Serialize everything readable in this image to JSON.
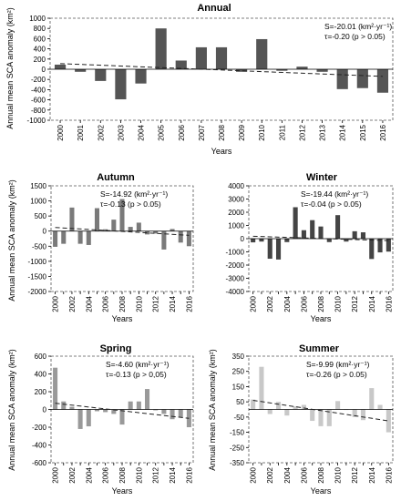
{
  "panels": [
    {
      "title": "Annual",
      "ylabel": "Annual mean SCA anomaly (km²)",
      "xlabel": "Years",
      "annotation_slope": "S=-20.01 (km²·yr⁻¹)",
      "annotation_tau": "τ=-0.20 (p > 0.05)"
    },
    {
      "title": "Autumn",
      "ylabel": "Annual mean SCA anomaly (km²)",
      "xlabel": "Years",
      "annotation_slope": "S=-14.92 (km²·yr⁻¹)",
      "annotation_tau": "τ=-0.13 (p > 0.05)"
    },
    {
      "title": "Winter",
      "ylabel": "",
      "xlabel": "Years",
      "annotation_slope": "S=-19.44 (km²·yr⁻¹)",
      "annotation_tau": "τ=-0.04 (p > 0.05)"
    },
    {
      "title": "Spring",
      "ylabel": "Annual mean SCA anomaly (km²)",
      "xlabel": "Years",
      "annotation_slope": "S=-4.60 (km²·yr⁻¹)",
      "annotation_tau": "τ=-0.13 (p > 0,05)"
    },
    {
      "title": "Summer",
      "ylabel": "Annual mean SCA anomaly (km²)",
      "xlabel": "Years",
      "annotation_slope": "S=-9.99 (km²·yr⁻¹)",
      "annotation_tau": "τ=-0.26 (p > 0.05)"
    }
  ],
  "chart_data": [
    {
      "type": "bar",
      "title": "Annual",
      "xlabel": "Years",
      "ylabel": "Annual mean SCA anomaly (km²)",
      "categories": [
        "2000",
        "2001",
        "2002",
        "2003",
        "2004",
        "2005",
        "2006",
        "2007",
        "2008",
        "2009",
        "2010",
        "2011",
        "2012",
        "2013",
        "2014",
        "2015",
        "2016"
      ],
      "values": [
        90,
        -50,
        -230,
        -590,
        -280,
        800,
        170,
        430,
        430,
        -50,
        590,
        -30,
        50,
        -50,
        -390,
        -370,
        -460
      ],
      "trend": {
        "start": 110,
        "end": -140
      },
      "ylim": [
        -1000,
        1000
      ],
      "yticks": [
        1000,
        800,
        600,
        400,
        200,
        0,
        -200,
        -400,
        -600,
        -800,
        -1000
      ],
      "xtick_labels": [
        "2000",
        "2001",
        "2002",
        "2003",
        "2004",
        "2005",
        "2006",
        "2007",
        "2008",
        "2009",
        "2010",
        "2011",
        "2012",
        "2013",
        "2014",
        "2015",
        "2016"
      ],
      "color": "#555555",
      "grid": false
    },
    {
      "type": "bar",
      "title": "Autumn",
      "xlabel": "Years",
      "ylabel": "Annual mean SCA anomaly (km²)",
      "categories": [
        "2000",
        "2001",
        "2002",
        "2003",
        "2004",
        "2005",
        "2006",
        "2007",
        "2008",
        "2009",
        "2010",
        "2011",
        "2012",
        "2013",
        "2014",
        "2015",
        "2016"
      ],
      "values": [
        -520,
        -420,
        780,
        -420,
        -460,
        760,
        60,
        380,
        1060,
        140,
        280,
        -110,
        -80,
        -610,
        70,
        -380,
        -500
      ],
      "trend": {
        "start": 120,
        "end": -140
      },
      "ylim": [
        -2000,
        1500
      ],
      "yticks": [
        1500,
        1000,
        500,
        0,
        -500,
        -1000,
        -1500,
        -2000
      ],
      "xtick_labels": [
        "2000",
        "2002",
        "2004",
        "2006",
        "2008",
        "2010",
        "2012",
        "2014",
        "2016"
      ],
      "color": "#7a7a7a",
      "grid": false
    },
    {
      "type": "bar",
      "title": "Winter",
      "xlabel": "Years",
      "ylabel": "",
      "categories": [
        "2000",
        "2001",
        "2002",
        "2003",
        "2004",
        "2005",
        "2006",
        "2007",
        "2008",
        "2009",
        "2010",
        "2011",
        "2012",
        "2013",
        "2014",
        "2015",
        "2016"
      ],
      "values": [
        -280,
        -220,
        -1520,
        -1580,
        -260,
        2380,
        640,
        1400,
        920,
        -260,
        1780,
        -220,
        560,
        480,
        -1540,
        -1040,
        -980
      ],
      "trend": {
        "start": 180,
        "end": -150
      },
      "ylim": [
        -4000,
        4000
      ],
      "yticks": [
        4000,
        3000,
        2000,
        1000,
        0,
        -1000,
        -2000,
        -3000,
        -4000
      ],
      "xtick_labels": [
        "2000",
        "2002",
        "2004",
        "2006",
        "2008",
        "2010",
        "2012",
        "2014",
        "2016"
      ],
      "color": "#444444",
      "grid": false
    },
    {
      "type": "bar",
      "title": "Spring",
      "xlabel": "Years",
      "ylabel": "Annual mean SCA anomaly (km²)",
      "categories": [
        "2000",
        "2001",
        "2002",
        "2003",
        "2004",
        "2005",
        "2006",
        "2007",
        "2008",
        "2009",
        "2010",
        "2011",
        "2012",
        "2013",
        "2014",
        "2015",
        "2016"
      ],
      "values": [
        470,
        90,
        30,
        -220,
        -190,
        -20,
        -30,
        -50,
        -170,
        90,
        90,
        230,
        -10,
        -50,
        -110,
        -90,
        -200
      ],
      "trend": {
        "start": 70,
        "end": -100
      },
      "ylim": [
        -600,
        600
      ],
      "yticks": [
        600,
        400,
        200,
        0,
        -200,
        -400,
        -600
      ],
      "xtick_labels": [
        "2000",
        "2002",
        "2004",
        "2006",
        "2008",
        "2010",
        "2012",
        "2014",
        "2016"
      ],
      "color": "#999999",
      "grid": false
    },
    {
      "type": "bar",
      "title": "Summer",
      "xlabel": "Years",
      "ylabel": "Annual mean SCA anomaly (km²)",
      "categories": [
        "2000",
        "2001",
        "2002",
        "2003",
        "2004",
        "2005",
        "2006",
        "2007",
        "2008",
        "2009",
        "2010",
        "2011",
        "2012",
        "2013",
        "2014",
        "2015",
        "2016"
      ],
      "values": [
        65,
        280,
        -30,
        50,
        -40,
        20,
        30,
        -75,
        -110,
        -110,
        55,
        0,
        -50,
        -70,
        140,
        30,
        -150
      ],
      "trend": {
        "start": 60,
        "end": -75
      },
      "ylim": [
        -350,
        350
      ],
      "yticks": [
        350,
        250,
        150,
        50,
        -50,
        -150,
        -250,
        -350
      ],
      "xtick_labels": [
        "2000",
        "2002",
        "2004",
        "2006",
        "2008",
        "2010",
        "2012",
        "2014",
        "2016"
      ],
      "color": "#c8c8c8",
      "grid": false
    }
  ]
}
